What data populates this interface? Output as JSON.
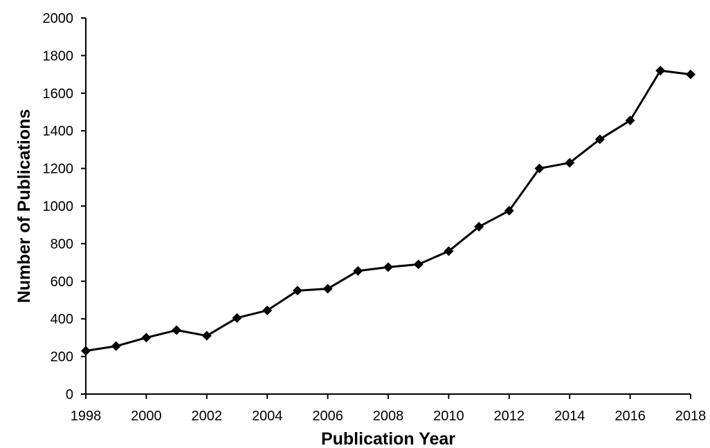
{
  "chart_data": {
    "type": "line",
    "xlabel": "Publication Year",
    "ylabel": "Number of Publications",
    "xlim": [
      1998,
      2018
    ],
    "ylim": [
      0,
      2000
    ],
    "x_ticks": [
      1998,
      2000,
      2002,
      2004,
      2006,
      2008,
      2010,
      2012,
      2014,
      2016,
      2018
    ],
    "y_ticks": [
      0,
      200,
      400,
      600,
      800,
      1000,
      1200,
      1400,
      1600,
      1800,
      2000
    ],
    "grid": false,
    "legend": "none",
    "series": [
      {
        "marker": "diamond",
        "color": "#000000",
        "x": [
          1998,
          1999,
          2000,
          2001,
          2002,
          2003,
          2004,
          2005,
          2006,
          2007,
          2008,
          2009,
          2010,
          2011,
          2012,
          2013,
          2014,
          2015,
          2016,
          2017,
          2018
        ],
        "values": [
          230,
          255,
          300,
          340,
          310,
          405,
          445,
          550,
          560,
          655,
          675,
          690,
          760,
          890,
          975,
          1200,
          1230,
          1355,
          1455,
          1720,
          1700
        ]
      }
    ]
  }
}
